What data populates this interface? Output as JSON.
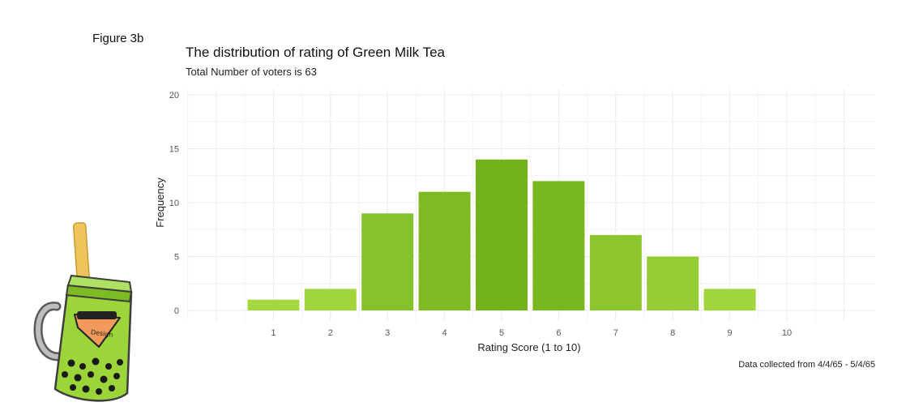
{
  "figure_label": "Figure 3b",
  "chart_data": {
    "type": "bar",
    "title": "The distribution of rating of Green Milk Tea",
    "subtitle": "Total Number of voters is 63",
    "xlabel": "Rating Score (1 to 10)",
    "ylabel": "Frequency",
    "caption": "Data collected from 4/4/65 - 5/4/65",
    "categories": [
      "1",
      "2",
      "3",
      "4",
      "5",
      "6",
      "7",
      "8",
      "9",
      "10"
    ],
    "values": [
      1,
      2,
      9,
      11,
      14,
      12,
      7,
      5,
      2,
      0
    ],
    "ylim": [
      0,
      20
    ],
    "yticks": [
      0,
      5,
      10,
      15,
      20
    ],
    "grid": true,
    "bar_colors": {
      "light": "#a4d83e",
      "dark": "#72b21a"
    },
    "illustration": {
      "type": "bubble-tea-jar-icon",
      "label": "Design",
      "colors": {
        "tea": "#9bd53a",
        "straw": "#f0c45c",
        "pearls": "#1a1a1a",
        "badge": "#f19a5b"
      }
    }
  }
}
